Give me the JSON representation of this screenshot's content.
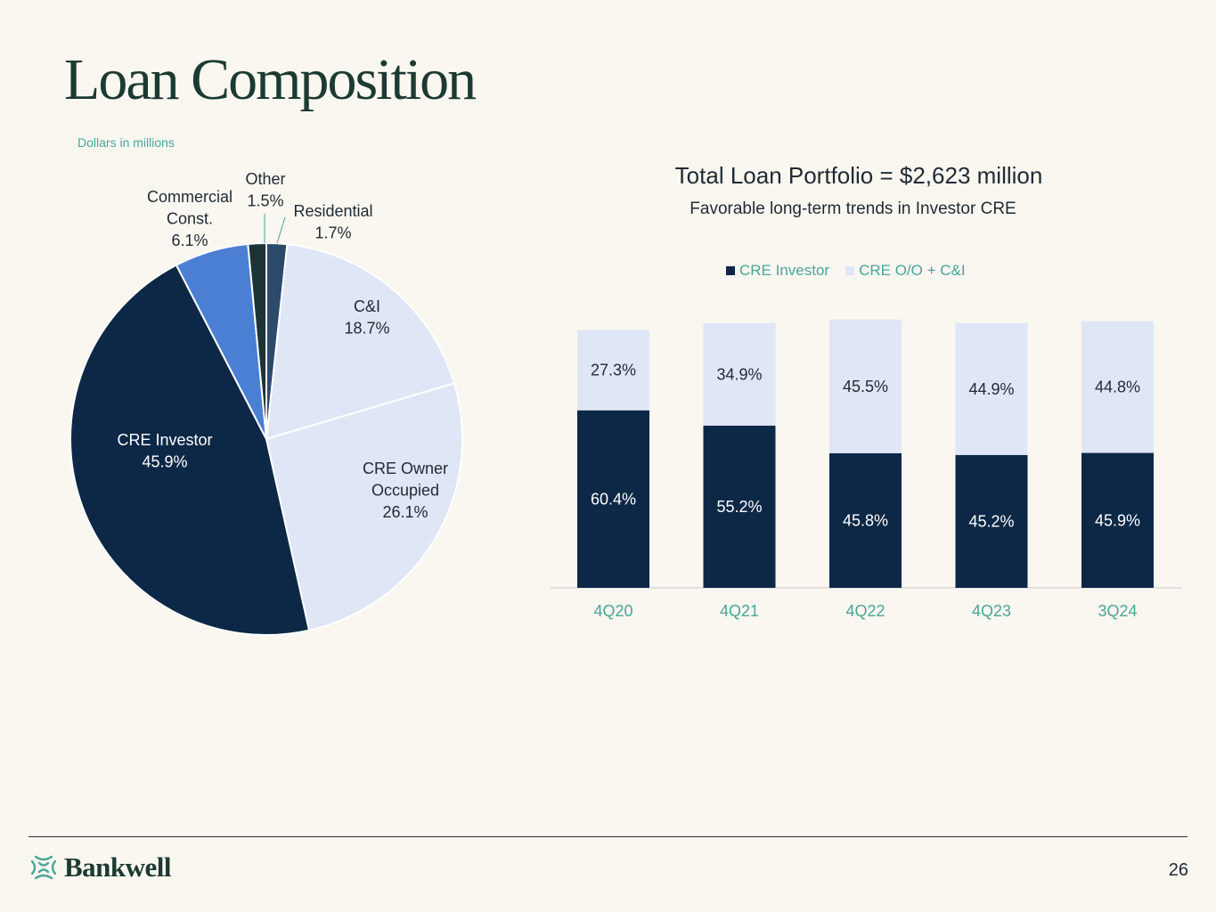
{
  "page": {
    "title": "Loan Composition",
    "note": "Dollars in millions",
    "page_number": "26",
    "brand": "Bankwell"
  },
  "colors": {
    "navy": "#0c2846",
    "light": "#dfe6f6",
    "blue": "#4a7fd4",
    "dark": "#1d3336",
    "slate": "#2c4a6b",
    "teal": "#4aa596"
  },
  "chart_data": [
    {
      "type": "pie",
      "title": "",
      "slices": [
        {
          "name": "Residential",
          "value": 1.7,
          "label_lines": [
            "Residential",
            "1.7%"
          ],
          "color": "#2c4a6b"
        },
        {
          "name": "C&I",
          "value": 18.7,
          "label_lines": [
            "C&I",
            "18.7%"
          ],
          "color": "#dfe6f6"
        },
        {
          "name": "CRE Owner Occupied",
          "value": 26.1,
          "label_lines": [
            "CRE Owner",
            "Occupied",
            "26.1%"
          ],
          "color": "#dfe6f6"
        },
        {
          "name": "CRE Investor",
          "value": 45.9,
          "label_lines": [
            "CRE Investor",
            "45.9%"
          ],
          "color": "#0c2846"
        },
        {
          "name": "Commercial Const.",
          "value": 6.1,
          "label_lines": [
            "Commercial",
            "Const.",
            "6.1%"
          ],
          "color": "#4a7fd4"
        },
        {
          "name": "Other",
          "value": 1.5,
          "label_lines": [
            "Other",
            "1.5%"
          ],
          "color": "#1d3336"
        }
      ]
    },
    {
      "type": "bar",
      "stacked": true,
      "title": "Total Loan Portfolio = $2,623 million",
      "subtitle": "Favorable long-term trends in Investor CRE",
      "categories": [
        "4Q20",
        "4Q21",
        "4Q22",
        "4Q23",
        "3Q24"
      ],
      "series": [
        {
          "name": "CRE Investor",
          "values": [
            60.4,
            55.2,
            45.8,
            45.2,
            45.9
          ],
          "labels": [
            "60.4%",
            "55.2%",
            "45.8%",
            "45.2%",
            "45.9%"
          ],
          "color": "#0c2846"
        },
        {
          "name": "CRE O/O + C&I",
          "values": [
            27.3,
            34.9,
            45.5,
            44.9,
            44.8
          ],
          "labels": [
            "27.3%",
            "34.9%",
            "45.5%",
            "44.9%",
            "44.8%"
          ],
          "color": "#dfe6f6"
        }
      ],
      "ylim": [
        0,
        100
      ],
      "legend": "top"
    }
  ]
}
